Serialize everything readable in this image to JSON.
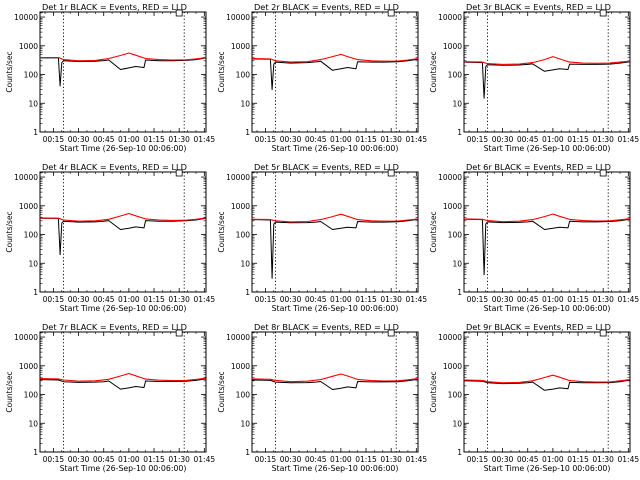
{
  "figure": {
    "xlabel": "Start Time (26-Sep-10 00:06:00)",
    "ylabel": "Counts/sec",
    "x_ticks": [
      "00:15",
      "00:30",
      "00:45",
      "01:00",
      "01:15",
      "01:30",
      "01:45"
    ],
    "y_ticks": [
      "1",
      "10",
      "100",
      "1000",
      "10000"
    ],
    "colors": {
      "events": "#000000",
      "lld": "#ff0000",
      "frame": "#000000"
    }
  },
  "chart_data": [
    {
      "type": "line",
      "title": "Det 1r BLACK = Events, RED = LLD",
      "x_range_min": [
        7,
        106
      ],
      "y_log": true,
      "ylim": [
        1,
        15000
      ],
      "vlines_min": [
        21,
        93
      ],
      "marker_min": 90,
      "grid": false,
      "series": [
        {
          "name": "Events",
          "x": [
            7,
            18,
            19,
            20,
            21,
            30,
            40,
            45,
            48,
            55,
            60,
            64,
            69,
            70,
            78,
            86,
            94,
            100,
            106
          ],
          "y": [
            380,
            380,
            40,
            260,
            300,
            285,
            290,
            305,
            320,
            150,
            170,
            190,
            175,
            320,
            300,
            300,
            310,
            330,
            380
          ]
        },
        {
          "name": "LLD",
          "x": [
            7,
            18,
            21,
            30,
            40,
            48,
            55,
            60,
            64,
            70,
            78,
            86,
            94,
            100,
            106
          ],
          "y": [
            390,
            390,
            330,
            300,
            310,
            360,
            460,
            560,
            470,
            360,
            330,
            320,
            325,
            350,
            390
          ]
        }
      ]
    },
    {
      "type": "line",
      "title": "Det 2r BLACK = Events, RED = LLD",
      "x_range_min": [
        7,
        106
      ],
      "y_log": true,
      "ylim": [
        1,
        15000
      ],
      "vlines_min": [
        21,
        93
      ],
      "marker_min": 90,
      "grid": false,
      "series": [
        {
          "name": "Events",
          "x": [
            7,
            18,
            19,
            20,
            21,
            30,
            40,
            45,
            48,
            55,
            60,
            64,
            69,
            70,
            78,
            86,
            94,
            100,
            106
          ],
          "y": [
            350,
            340,
            30,
            230,
            270,
            250,
            260,
            275,
            290,
            140,
            160,
            175,
            160,
            280,
            270,
            270,
            280,
            300,
            340
          ]
        },
        {
          "name": "LLD",
          "x": [
            7,
            18,
            21,
            30,
            40,
            48,
            55,
            60,
            64,
            70,
            78,
            86,
            94,
            100,
            106
          ],
          "y": [
            360,
            350,
            300,
            270,
            280,
            330,
            420,
            500,
            420,
            330,
            300,
            290,
            295,
            320,
            360
          ]
        }
      ]
    },
    {
      "type": "line",
      "title": "Det 3r BLACK = Events, RED = LLD",
      "x_range_min": [
        7,
        106
      ],
      "y_log": true,
      "ylim": [
        1,
        15000
      ],
      "vlines_min": [
        21,
        93
      ],
      "marker_min": 90,
      "grid": false,
      "series": [
        {
          "name": "Events",
          "x": [
            7,
            18,
            19,
            20,
            21,
            30,
            40,
            45,
            48,
            55,
            60,
            64,
            69,
            70,
            78,
            86,
            94,
            100,
            106
          ],
          "y": [
            270,
            260,
            15,
            190,
            220,
            210,
            215,
            225,
            235,
            130,
            145,
            160,
            150,
            230,
            225,
            225,
            230,
            250,
            280
          ]
        },
        {
          "name": "LLD",
          "x": [
            7,
            18,
            21,
            30,
            40,
            48,
            55,
            60,
            64,
            70,
            78,
            86,
            94,
            100,
            106
          ],
          "y": [
            280,
            270,
            240,
            225,
            230,
            260,
            330,
            420,
            350,
            270,
            250,
            245,
            250,
            270,
            290
          ]
        }
      ]
    },
    {
      "type": "line",
      "title": "Det 4r BLACK = Events, RED = LLD",
      "x_range_min": [
        7,
        106
      ],
      "y_log": true,
      "ylim": [
        1,
        15000
      ],
      "vlines_min": [
        21,
        93
      ],
      "marker_min": 90,
      "grid": false,
      "series": [
        {
          "name": "Events",
          "x": [
            7,
            18,
            19,
            20,
            21,
            30,
            40,
            45,
            48,
            55,
            60,
            64,
            69,
            70,
            78,
            86,
            94,
            100,
            106
          ],
          "y": [
            370,
            360,
            20,
            250,
            290,
            270,
            275,
            290,
            305,
            150,
            165,
            185,
            170,
            305,
            290,
            290,
            300,
            320,
            370
          ]
        },
        {
          "name": "LLD",
          "x": [
            7,
            18,
            21,
            30,
            40,
            48,
            55,
            60,
            64,
            70,
            78,
            86,
            94,
            100,
            106
          ],
          "y": [
            380,
            370,
            320,
            290,
            300,
            340,
            440,
            540,
            450,
            350,
            320,
            310,
            315,
            340,
            380
          ]
        }
      ]
    },
    {
      "type": "line",
      "title": "Det 5r BLACK = Events, RED = LLD",
      "x_range_min": [
        7,
        106
      ],
      "y_log": true,
      "ylim": [
        1,
        15000
      ],
      "vlines_min": [
        21,
        93
      ],
      "marker_min": 90,
      "grid": false,
      "series": [
        {
          "name": "Events",
          "x": [
            7,
            18,
            19,
            20,
            21,
            30,
            40,
            45,
            48,
            55,
            60,
            64,
            69,
            70,
            78,
            86,
            94,
            100,
            106
          ],
          "y": [
            330,
            320,
            3,
            230,
            270,
            255,
            260,
            270,
            285,
            150,
            165,
            180,
            170,
            285,
            270,
            270,
            280,
            300,
            340
          ]
        },
        {
          "name": "LLD",
          "x": [
            7,
            18,
            21,
            30,
            40,
            48,
            55,
            60,
            64,
            70,
            78,
            86,
            94,
            100,
            106
          ],
          "y": [
            340,
            330,
            300,
            275,
            285,
            330,
            420,
            510,
            430,
            330,
            300,
            290,
            295,
            320,
            350
          ]
        }
      ]
    },
    {
      "type": "line",
      "title": "Det 6r BLACK = Events, RED = LLD",
      "x_range_min": [
        7,
        106
      ],
      "y_log": true,
      "ylim": [
        1,
        15000
      ],
      "vlines_min": [
        21,
        93
      ],
      "marker_min": 90,
      "grid": false,
      "series": [
        {
          "name": "Events",
          "x": [
            7,
            18,
            19,
            20,
            21,
            30,
            40,
            45,
            48,
            55,
            60,
            64,
            69,
            70,
            78,
            86,
            94,
            100,
            106
          ],
          "y": [
            340,
            330,
            4,
            235,
            275,
            260,
            265,
            275,
            290,
            150,
            165,
            180,
            170,
            290,
            275,
            275,
            285,
            300,
            345
          ]
        },
        {
          "name": "LLD",
          "x": [
            7,
            18,
            21,
            30,
            40,
            48,
            55,
            60,
            64,
            70,
            78,
            86,
            94,
            100,
            106
          ],
          "y": [
            350,
            340,
            305,
            280,
            290,
            330,
            420,
            520,
            430,
            335,
            305,
            295,
            300,
            325,
            355
          ]
        }
      ]
    },
    {
      "type": "line",
      "title": "Det 7r BLACK = Events, RED = LLD",
      "x_range_min": [
        7,
        106
      ],
      "y_log": true,
      "ylim": [
        1,
        15000
      ],
      "vlines_min": [
        21,
        93
      ],
      "marker_min": 90,
      "grid": false,
      "series": [
        {
          "name": "Events",
          "x": [
            7,
            18,
            21,
            30,
            40,
            45,
            48,
            55,
            60,
            64,
            69,
            70,
            78,
            86,
            94,
            100,
            106
          ],
          "y": [
            330,
            320,
            280,
            265,
            270,
            280,
            295,
            155,
            170,
            190,
            175,
            295,
            285,
            285,
            290,
            310,
            350
          ]
        },
        {
          "name": "LLD",
          "x": [
            7,
            18,
            21,
            30,
            40,
            48,
            55,
            60,
            64,
            70,
            78,
            86,
            94,
            100,
            106
          ],
          "y": [
            360,
            350,
            320,
            290,
            300,
            340,
            440,
            540,
            450,
            345,
            315,
            305,
            310,
            335,
            370
          ]
        }
      ]
    },
    {
      "type": "line",
      "title": "Det 8r BLACK = Events, RED = LLD",
      "x_range_min": [
        7,
        106
      ],
      "y_log": true,
      "ylim": [
        1,
        15000
      ],
      "vlines_min": [
        21,
        93
      ],
      "marker_min": 90,
      "grid": false,
      "series": [
        {
          "name": "Events",
          "x": [
            7,
            18,
            21,
            30,
            40,
            45,
            48,
            55,
            60,
            64,
            69,
            70,
            78,
            86,
            94,
            100,
            106
          ],
          "y": [
            320,
            310,
            270,
            255,
            260,
            270,
            285,
            150,
            165,
            185,
            170,
            285,
            275,
            275,
            280,
            300,
            340
          ]
        },
        {
          "name": "LLD",
          "x": [
            7,
            18,
            21,
            30,
            40,
            48,
            55,
            60,
            64,
            70,
            78,
            86,
            94,
            100,
            106
          ],
          "y": [
            350,
            340,
            310,
            280,
            290,
            330,
            430,
            520,
            440,
            335,
            305,
            295,
            300,
            325,
            360
          ]
        }
      ]
    },
    {
      "type": "line",
      "title": "Det 9r BLACK = Events, RED = LLD",
      "x_range_min": [
        7,
        106
      ],
      "y_log": true,
      "ylim": [
        1,
        15000
      ],
      "vlines_min": [
        21,
        93
      ],
      "marker_min": 90,
      "grid": false,
      "series": [
        {
          "name": "Events",
          "x": [
            7,
            18,
            21,
            30,
            40,
            45,
            48,
            55,
            60,
            64,
            69,
            70,
            78,
            86,
            94,
            100,
            106
          ],
          "y": [
            300,
            290,
            255,
            240,
            245,
            255,
            270,
            140,
            155,
            170,
            160,
            265,
            255,
            255,
            260,
            280,
            320
          ]
        },
        {
          "name": "LLD",
          "x": [
            7,
            18,
            21,
            30,
            40,
            48,
            55,
            60,
            64,
            70,
            78,
            86,
            94,
            100,
            106
          ],
          "y": [
            320,
            310,
            280,
            255,
            265,
            300,
            390,
            470,
            400,
            305,
            280,
            270,
            275,
            300,
            330
          ]
        }
      ]
    }
  ]
}
